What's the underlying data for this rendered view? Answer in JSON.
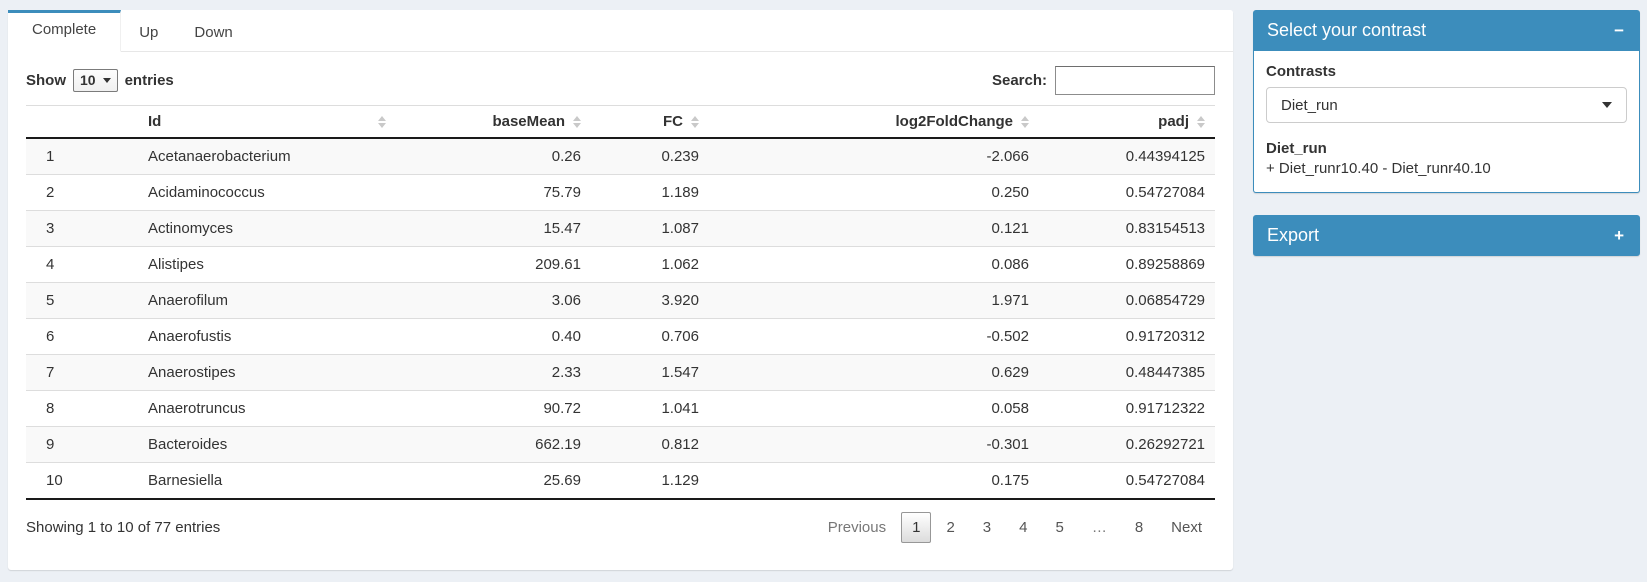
{
  "tabs": [
    {
      "label": "Complete",
      "active": true
    },
    {
      "label": "Up",
      "active": false
    },
    {
      "label": "Down",
      "active": false
    }
  ],
  "length_control": {
    "prefix": "Show",
    "value": "10",
    "suffix": "entries"
  },
  "search": {
    "label": "Search:",
    "value": ""
  },
  "table": {
    "columns": [
      {
        "label": "",
        "sortable": false,
        "align": "left"
      },
      {
        "label": "Id",
        "sortable": true,
        "align": "left"
      },
      {
        "label": "baseMean",
        "sortable": true,
        "align": "right"
      },
      {
        "label": "FC",
        "sortable": true,
        "align": "right"
      },
      {
        "label": "log2FoldChange",
        "sortable": true,
        "align": "right"
      },
      {
        "label": "padj",
        "sortable": true,
        "align": "right"
      }
    ],
    "rows": [
      [
        "1",
        "Acetanaerobacterium",
        "0.26",
        "0.239",
        "-2.066",
        "0.44394125"
      ],
      [
        "2",
        "Acidaminococcus",
        "75.79",
        "1.189",
        "0.250",
        "0.54727084"
      ],
      [
        "3",
        "Actinomyces",
        "15.47",
        "1.087",
        "0.121",
        "0.83154513"
      ],
      [
        "4",
        "Alistipes",
        "209.61",
        "1.062",
        "0.086",
        "0.89258869"
      ],
      [
        "5",
        "Anaerofilum",
        "3.06",
        "3.920",
        "1.971",
        "0.06854729"
      ],
      [
        "6",
        "Anaerofustis",
        "0.40",
        "0.706",
        "-0.502",
        "0.91720312"
      ],
      [
        "7",
        "Anaerostipes",
        "2.33",
        "1.547",
        "0.629",
        "0.48447385"
      ],
      [
        "8",
        "Anaerotruncus",
        "90.72",
        "1.041",
        "0.058",
        "0.91712322"
      ],
      [
        "9",
        "Bacteroides",
        "662.19",
        "0.812",
        "-0.301",
        "0.26292721"
      ],
      [
        "10",
        "Barnesiella",
        "25.69",
        "1.129",
        "0.175",
        "0.54727084"
      ]
    ],
    "info": "Showing 1 to 10 of 77 entries",
    "pagination": {
      "previous": "Previous",
      "pages": [
        "1",
        "2",
        "3",
        "4",
        "5",
        "…",
        "8"
      ],
      "current": "1",
      "next": "Next"
    }
  },
  "sidebar": {
    "contrast_panel": {
      "title": "Select your contrast",
      "collapse_icon": "−",
      "contrasts_label": "Contrasts",
      "select_value": "Diet_run",
      "detail_title": "Diet_run",
      "detail_text": "+ Diet_runr10.40 - Diet_runr40.10"
    },
    "export_panel": {
      "title": "Export",
      "collapse_icon": "+"
    }
  },
  "colors": {
    "primary": "#3c8dbc",
    "page_bg": "#ecf0f5"
  }
}
